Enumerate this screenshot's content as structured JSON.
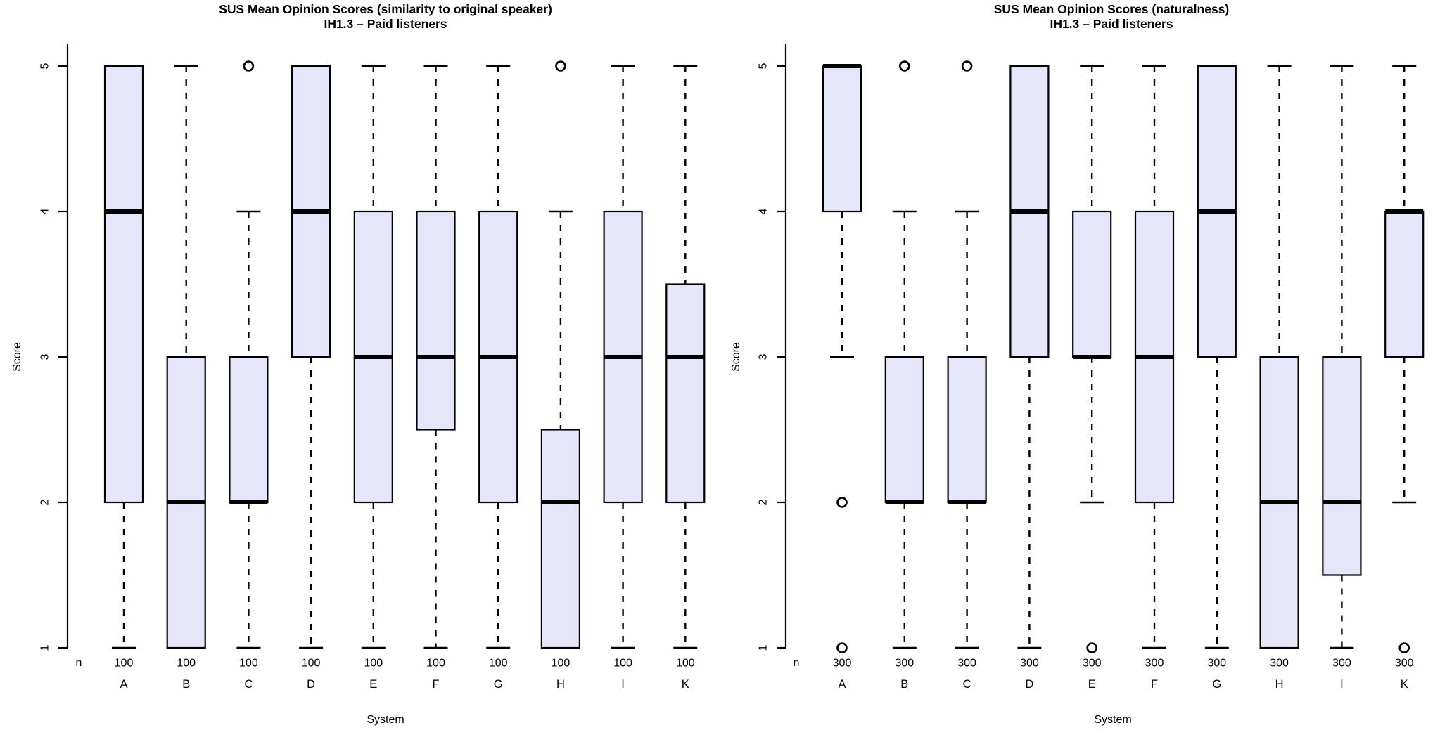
{
  "figure": {
    "background": "#ffffff"
  },
  "styles": {
    "box_fill": "#e6e6fa",
    "box_border": "#000000",
    "median_color": "#000000",
    "whisker_color": "#000000",
    "axis_color": "#000000",
    "text_color": "#000000"
  },
  "chart_data": [
    {
      "type": "boxplot",
      "title": "SUS Mean Opinion Scores (similarity to original speaker)",
      "subtitle": "IH1.3 – Paid listeners",
      "xlabel": "System",
      "ylabel": "Score",
      "n_row_label": "n",
      "ylim": [
        1,
        5
      ],
      "yticks": [
        1,
        2,
        3,
        4,
        5
      ],
      "grid": false,
      "categories": [
        "A",
        "B",
        "C",
        "D",
        "E",
        "F",
        "G",
        "H",
        "I",
        "K"
      ],
      "boxes": [
        {
          "system": "A",
          "n": "100",
          "q1": 2,
          "median": 4,
          "q3": 5,
          "whisker_low": 1,
          "whisker_high": 5,
          "outliers": []
        },
        {
          "system": "B",
          "n": "100",
          "q1": 1,
          "median": 2,
          "q3": 3,
          "whisker_low": 1,
          "whisker_high": 5,
          "outliers": []
        },
        {
          "system": "C",
          "n": "100",
          "q1": 2,
          "median": 2,
          "q3": 3,
          "whisker_low": 1,
          "whisker_high": 4,
          "outliers": [
            5
          ]
        },
        {
          "system": "D",
          "n": "100",
          "q1": 3,
          "median": 4,
          "q3": 5,
          "whisker_low": 1,
          "whisker_high": 5,
          "outliers": []
        },
        {
          "system": "E",
          "n": "100",
          "q1": 2,
          "median": 3,
          "q3": 4,
          "whisker_low": 1,
          "whisker_high": 5,
          "outliers": []
        },
        {
          "system": "F",
          "n": "100",
          "q1": 2.5,
          "median": 3,
          "q3": 4,
          "whisker_low": 1,
          "whisker_high": 5,
          "outliers": []
        },
        {
          "system": "G",
          "n": "100",
          "q1": 2,
          "median": 3,
          "q3": 4,
          "whisker_low": 1,
          "whisker_high": 5,
          "outliers": []
        },
        {
          "system": "H",
          "n": "100",
          "q1": 1,
          "median": 2,
          "q3": 2.5,
          "whisker_low": 1,
          "whisker_high": 4,
          "outliers": [
            5
          ]
        },
        {
          "system": "I",
          "n": "100",
          "q1": 2,
          "median": 3,
          "q3": 4,
          "whisker_low": 1,
          "whisker_high": 5,
          "outliers": []
        },
        {
          "system": "K",
          "n": "100",
          "q1": 2,
          "median": 3,
          "q3": 3.5,
          "whisker_low": 1,
          "whisker_high": 5,
          "outliers": []
        }
      ]
    },
    {
      "type": "boxplot",
      "title": "SUS Mean Opinion Scores (naturalness)",
      "subtitle": "IH1.3 – Paid listeners",
      "xlabel": "System",
      "ylabel": "Score",
      "n_row_label": "n",
      "ylim": [
        1,
        5
      ],
      "yticks": [
        1,
        2,
        3,
        4,
        5
      ],
      "grid": false,
      "categories": [
        "A",
        "B",
        "C",
        "D",
        "E",
        "F",
        "G",
        "H",
        "I",
        "K"
      ],
      "boxes": [
        {
          "system": "A",
          "n": "300",
          "q1": 4,
          "median": 5,
          "q3": 5,
          "whisker_low": 3,
          "whisker_high": 5,
          "outliers": [
            2,
            1
          ]
        },
        {
          "system": "B",
          "n": "300",
          "q1": 2,
          "median": 2,
          "q3": 3,
          "whisker_low": 1,
          "whisker_high": 4,
          "outliers": [
            5
          ]
        },
        {
          "system": "C",
          "n": "300",
          "q1": 2,
          "median": 2,
          "q3": 3,
          "whisker_low": 1,
          "whisker_high": 4,
          "outliers": [
            5
          ]
        },
        {
          "system": "D",
          "n": "300",
          "q1": 3,
          "median": 4,
          "q3": 5,
          "whisker_low": 1,
          "whisker_high": 5,
          "outliers": []
        },
        {
          "system": "E",
          "n": "300",
          "q1": 3,
          "median": 3,
          "q3": 4,
          "whisker_low": 2,
          "whisker_high": 5,
          "outliers": [
            1
          ]
        },
        {
          "system": "F",
          "n": "300",
          "q1": 2,
          "median": 3,
          "q3": 4,
          "whisker_low": 1,
          "whisker_high": 5,
          "outliers": []
        },
        {
          "system": "G",
          "n": "300",
          "q1": 3,
          "median": 4,
          "q3": 5,
          "whisker_low": 1,
          "whisker_high": 5,
          "outliers": []
        },
        {
          "system": "H",
          "n": "300",
          "q1": 1,
          "median": 2,
          "q3": 3,
          "whisker_low": 1,
          "whisker_high": 5,
          "outliers": []
        },
        {
          "system": "I",
          "n": "300",
          "q1": 1.5,
          "median": 2,
          "q3": 3,
          "whisker_low": 1,
          "whisker_high": 5,
          "outliers": []
        },
        {
          "system": "K",
          "n": "300",
          "q1": 3,
          "median": 4,
          "q3": 4,
          "whisker_low": 2,
          "whisker_high": 5,
          "outliers": [
            1
          ]
        }
      ]
    }
  ]
}
